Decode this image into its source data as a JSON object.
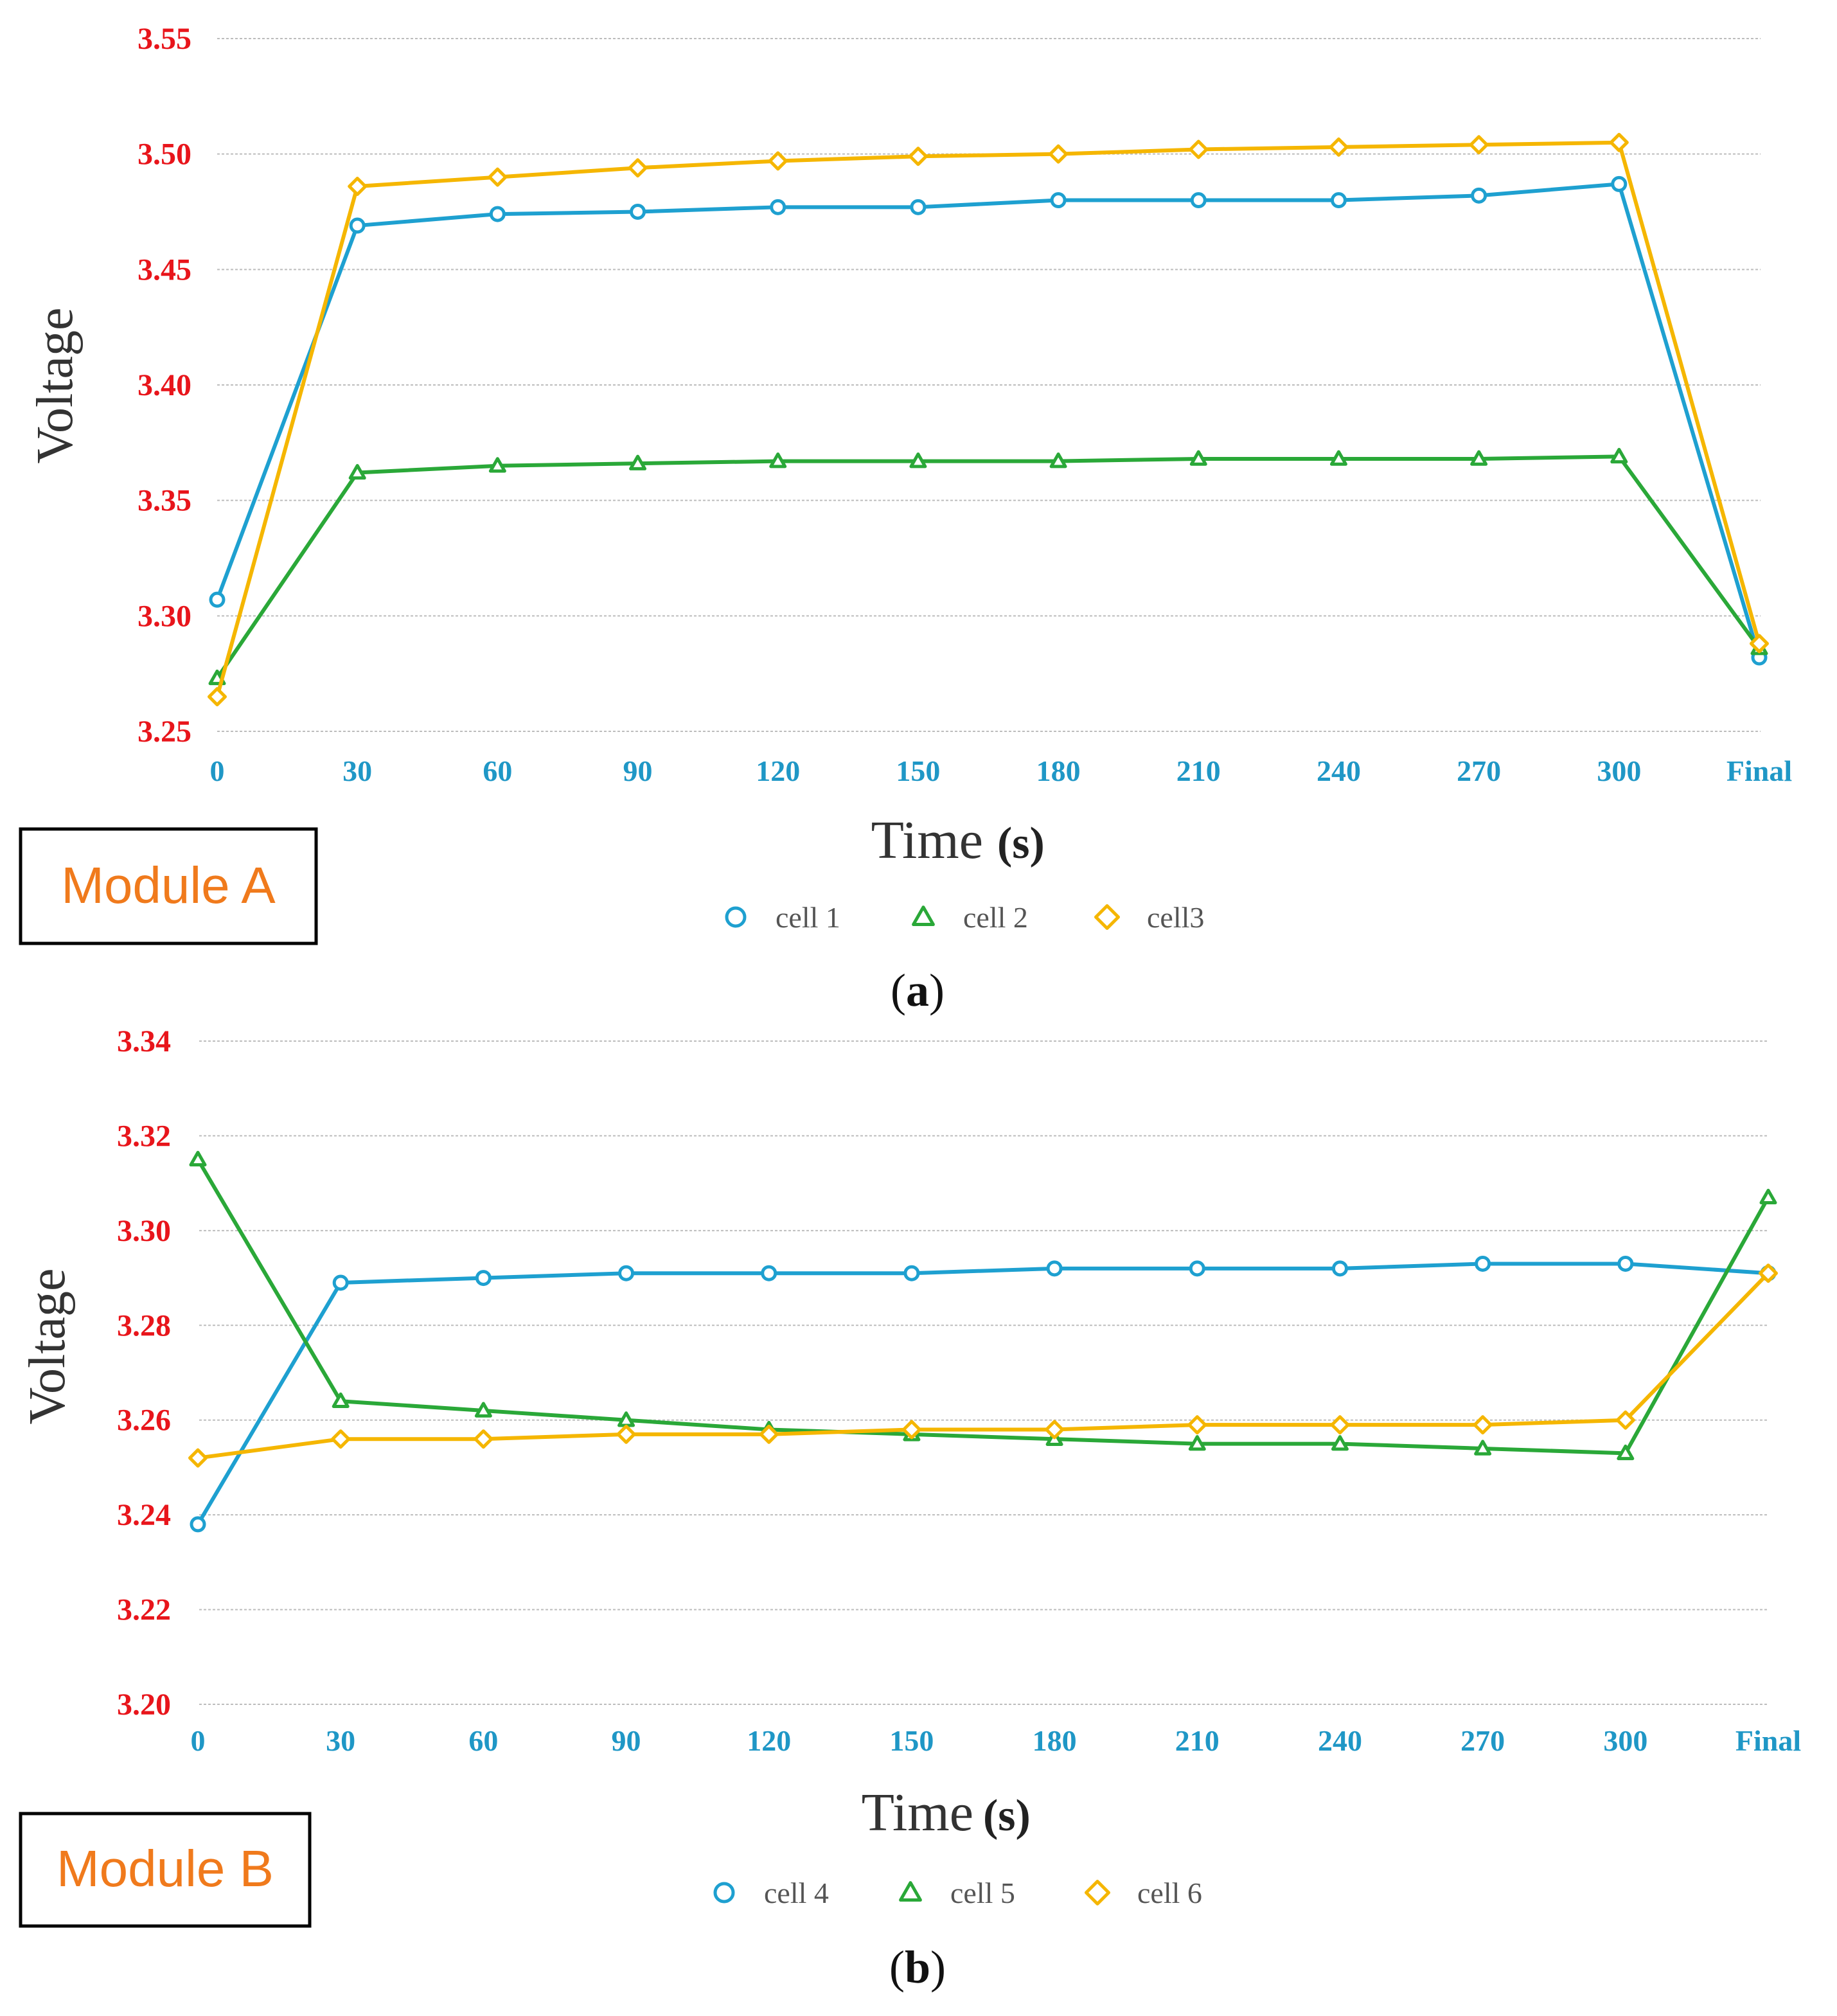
{
  "chart_data": [
    {
      "type": "line",
      "panel_id": "a",
      "caption": "a",
      "module_label": "Module A",
      "xlabel": "Time",
      "xlabel_unit": "(s)",
      "ylabel": "Voltage",
      "categories": [
        "0",
        "30",
        "60",
        "90",
        "120",
        "150",
        "180",
        "210",
        "240",
        "270",
        "300",
        "Final"
      ],
      "y_ticks": [
        "3.25",
        "3.30",
        "3.35",
        "3.40",
        "3.45",
        "3.50",
        "3.55"
      ],
      "ylim": [
        3.25,
        3.55
      ],
      "grid": true,
      "legend_position": "bottom",
      "series": [
        {
          "name": "cell 1",
          "marker": "circle",
          "color": "#1ea0d0",
          "values": [
            3.307,
            3.469,
            3.474,
            3.475,
            3.477,
            3.477,
            3.48,
            3.48,
            3.48,
            3.482,
            3.487,
            3.282
          ]
        },
        {
          "name": "cell 2",
          "marker": "triangle",
          "color": "#2aa838",
          "values": [
            3.273,
            3.362,
            3.365,
            3.366,
            3.367,
            3.367,
            3.367,
            3.368,
            3.368,
            3.368,
            3.369,
            3.286
          ]
        },
        {
          "name": "cell3",
          "marker": "diamond",
          "color": "#f5b600",
          "values": [
            3.265,
            3.486,
            3.49,
            3.494,
            3.497,
            3.499,
            3.5,
            3.502,
            3.503,
            3.504,
            3.505,
            3.288
          ]
        }
      ]
    },
    {
      "type": "line",
      "panel_id": "b",
      "caption": "b",
      "module_label": "Module B",
      "xlabel": "Time",
      "xlabel_unit": "(s)",
      "ylabel": "Voltage",
      "categories": [
        "0",
        "30",
        "60",
        "90",
        "120",
        "150",
        "180",
        "210",
        "240",
        "270",
        "300",
        "Final"
      ],
      "y_ticks": [
        "3.20",
        "3.22",
        "3.24",
        "3.26",
        "3.28",
        "3.30",
        "3.32",
        "3.34"
      ],
      "ylim": [
        3.2,
        3.34
      ],
      "grid": true,
      "legend_position": "bottom",
      "series": [
        {
          "name": "cell 4",
          "marker": "circle",
          "color": "#1ea0d0",
          "values": [
            3.238,
            3.289,
            3.29,
            3.291,
            3.291,
            3.291,
            3.292,
            3.292,
            3.292,
            3.293,
            3.293,
            3.291
          ]
        },
        {
          "name": "cell 5",
          "marker": "triangle",
          "color": "#2aa838",
          "values": [
            3.315,
            3.264,
            3.262,
            3.26,
            3.258,
            3.257,
            3.256,
            3.255,
            3.255,
            3.254,
            3.253,
            3.307
          ]
        },
        {
          "name": "cell 6",
          "marker": "diamond",
          "color": "#f5b600",
          "values": [
            3.252,
            3.256,
            3.256,
            3.257,
            3.257,
            3.258,
            3.258,
            3.259,
            3.259,
            3.259,
            3.26,
            3.291
          ]
        }
      ]
    }
  ]
}
